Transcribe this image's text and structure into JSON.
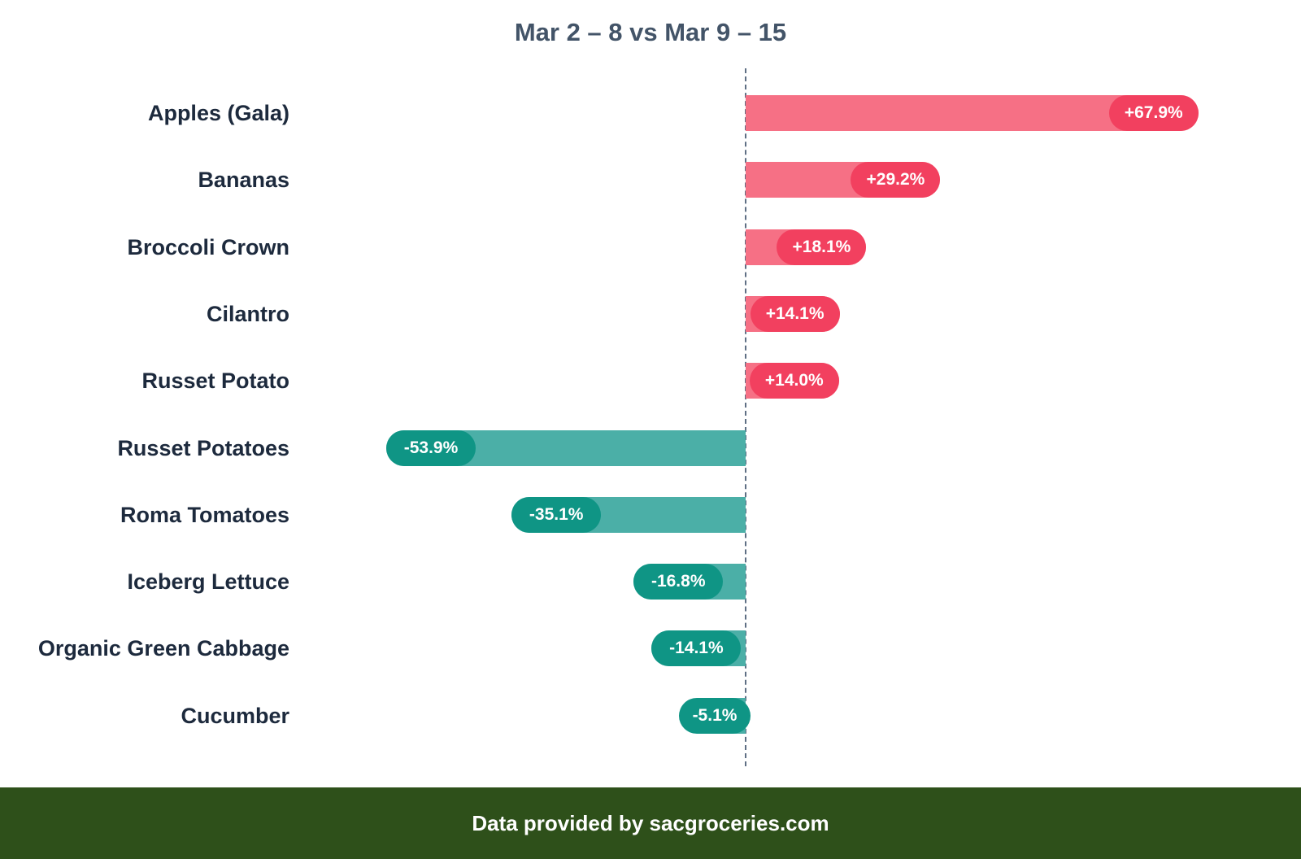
{
  "header": {
    "title": "Mar 2 – 8 vs Mar 9 – 15"
  },
  "footer": {
    "text": "Data provided by sacgroceries.com"
  },
  "colors": {
    "positive_bar": "#f67085",
    "positive_pill": "#f2405f",
    "negative_bar": "#4bafa7",
    "negative_pill": "#0f9585",
    "footer_bg": "#2e501a",
    "title": "#435468",
    "label": "#1d2a3d"
  },
  "chart_data": {
    "type": "bar",
    "orientation": "horizontal",
    "title": "Mar 2 – 8 vs Mar 9 – 15",
    "xlabel": "",
    "ylabel": "",
    "baseline": 0,
    "grid": false,
    "categories": [
      "Apples (Gala)",
      "Bananas",
      "Broccoli Crown",
      "Cilantro",
      "Russet Potato",
      "Russet Potatoes",
      "Roma Tomatoes",
      "Iceberg Lettuce",
      "Organic Green Cabbage",
      "Cucumber"
    ],
    "values": [
      67.9,
      29.2,
      18.1,
      14.1,
      14.0,
      -53.9,
      -35.1,
      -16.8,
      -14.1,
      -5.1
    ],
    "value_labels": [
      "+67.9%",
      "+29.2%",
      "+18.1%",
      "+14.1%",
      "+14.0%",
      "-53.9%",
      "-35.1%",
      "-16.8%",
      "-14.1%",
      "-5.1%"
    ],
    "unit": "%",
    "annotations": [
      "Data provided by sacgroceries.com"
    ]
  }
}
